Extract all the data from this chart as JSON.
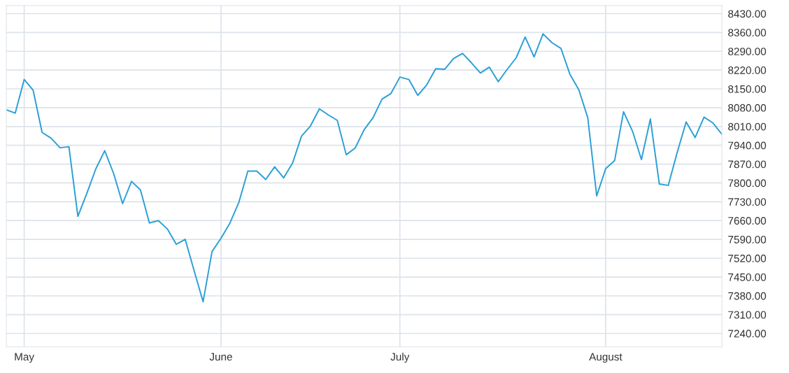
{
  "chart_data": {
    "type": "line",
    "categories": [
      null,
      null,
      "May",
      null,
      null,
      null,
      null,
      null,
      null,
      null,
      null,
      null,
      null,
      null,
      null,
      null,
      null,
      null,
      null,
      null,
      null,
      null,
      null,
      null,
      "June",
      null,
      null,
      null,
      null,
      null,
      null,
      null,
      null,
      null,
      null,
      null,
      null,
      null,
      null,
      null,
      null,
      null,
      null,
      null,
      "July",
      null,
      null,
      null,
      null,
      null,
      null,
      null,
      null,
      null,
      null,
      null,
      null,
      null,
      null,
      null,
      null,
      null,
      null,
      null,
      null,
      null,
      null,
      "August",
      null,
      null,
      null,
      null,
      null,
      null,
      null,
      null,
      null,
      null,
      null,
      null,
      null
    ],
    "series": [
      {
        "color": "#2a9fd6",
        "values": [
          8072,
          8060,
          8185,
          8145,
          7988,
          7967,
          7931,
          7935,
          7676,
          7761,
          7852,
          7920,
          7835,
          7723,
          7806,
          7774,
          7651,
          7660,
          7629,
          7572,
          7590,
          7473,
          7358,
          7545,
          7594,
          7651,
          7728,
          7844,
          7844,
          7813,
          7860,
          7819,
          7874,
          7974,
          8012,
          8076,
          8053,
          8033,
          7905,
          7930,
          7998,
          8043,
          8112,
          8133,
          8194,
          8185,
          8126,
          8165,
          8225,
          8223,
          8263,
          8282,
          8247,
          8209,
          8231,
          8177,
          8223,
          8266,
          8343,
          8269,
          8355,
          8322,
          8301,
          8205,
          8147,
          8043,
          7752,
          7853,
          7883,
          8065,
          7993,
          7887,
          8038,
          7796,
          7791,
          7914,
          8027,
          7969,
          8045,
          8023,
          7981
        ]
      }
    ],
    "ylim": [
      7190,
      8460
    ],
    "yticks": [
      {
        "value": 8430,
        "label": "8430.00"
      },
      {
        "value": 8360,
        "label": "8360.00"
      },
      {
        "value": 8290,
        "label": "8290.00"
      },
      {
        "value": 8220,
        "label": "8220.00"
      },
      {
        "value": 8150,
        "label": "8150.00"
      },
      {
        "value": 8080,
        "label": "8080.00"
      },
      {
        "value": 8010,
        "label": "8010.00"
      },
      {
        "value": 7940,
        "label": "7940.00"
      },
      {
        "value": 7870,
        "label": "7870.00"
      },
      {
        "value": 7800,
        "label": "7800.00"
      },
      {
        "value": 7730,
        "label": "7730.00"
      },
      {
        "value": 7660,
        "label": "7660.00"
      },
      {
        "value": 7590,
        "label": "7590.00"
      },
      {
        "value": 7520,
        "label": "7520.00"
      },
      {
        "value": 7450,
        "label": "7450.00"
      },
      {
        "value": 7380,
        "label": "7380.00"
      },
      {
        "value": 7310,
        "label": "7310.00"
      },
      {
        "value": 7240,
        "label": "7240.00"
      }
    ],
    "grid": true,
    "marker": "none",
    "line_style": "solid",
    "legend": false
  }
}
